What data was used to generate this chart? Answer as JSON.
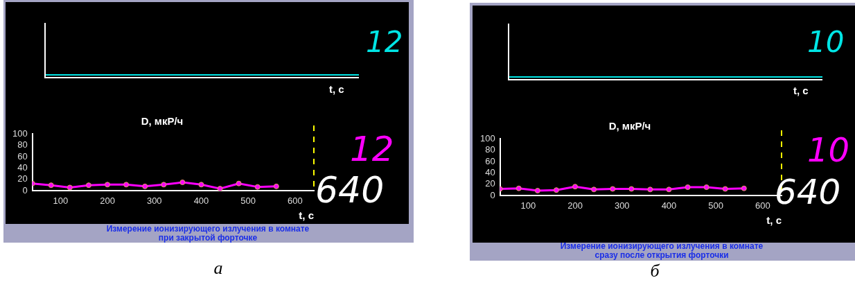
{
  "chart_data": [
    {
      "type": "line",
      "title": "D, мкР/ч",
      "xlabel": "t, с",
      "xlim": [
        40,
        640
      ],
      "xticks": [
        100,
        200,
        300,
        400,
        500,
        600
      ],
      "ylim": [
        0,
        100
      ],
      "yticks": [
        0,
        20,
        40,
        60,
        80,
        100
      ],
      "grid": false,
      "legend": false,
      "marker": "circle",
      "line_style": "solid",
      "series": [
        {
          "color": "#ff00ff",
          "x": [
            40,
            80,
            120,
            160,
            200,
            240,
            280,
            320,
            360,
            400,
            440,
            480,
            520,
            560
          ],
          "values": [
            13,
            10,
            6,
            10,
            11,
            11,
            8,
            11,
            15,
            11,
            4,
            13,
            7,
            8
          ]
        }
      ],
      "ref_lines": [
        {
          "axis": "x",
          "value": 640,
          "color": "#ffff00",
          "line_style": "dashed"
        }
      ],
      "annotations": [
        "12",
        "t, с",
        "12",
        "640",
        "Измерение ионизирующего излучения в комнате\nпри закрытой форточке",
        "а"
      ]
    },
    {
      "type": "line",
      "title": "D, мкР/ч",
      "xlabel": "t, с",
      "xlim": [
        40,
        640
      ],
      "xticks": [
        100,
        200,
        300,
        400,
        500,
        600
      ],
      "ylim": [
        0,
        100
      ],
      "yticks": [
        0,
        20,
        40,
        60,
        80,
        100
      ],
      "grid": false,
      "legend": false,
      "marker": "circle",
      "line_style": "solid",
      "series": [
        {
          "color": "#ff00ff",
          "x": [
            40,
            80,
            120,
            160,
            200,
            240,
            280,
            320,
            360,
            400,
            440,
            480,
            520,
            560
          ],
          "values": [
            12,
            13,
            9,
            10,
            16,
            11,
            12,
            12,
            11,
            11,
            15,
            15,
            12,
            13
          ]
        }
      ],
      "ref_lines": [
        {
          "axis": "x",
          "value": 640,
          "color": "#ffff00",
          "line_style": "dashed"
        }
      ],
      "annotations": [
        "10",
        "t, с",
        "10",
        "640",
        "Измерение ионизирующего излучения в комнате\nсразу после открытия форточки",
        "б"
      ]
    }
  ]
}
